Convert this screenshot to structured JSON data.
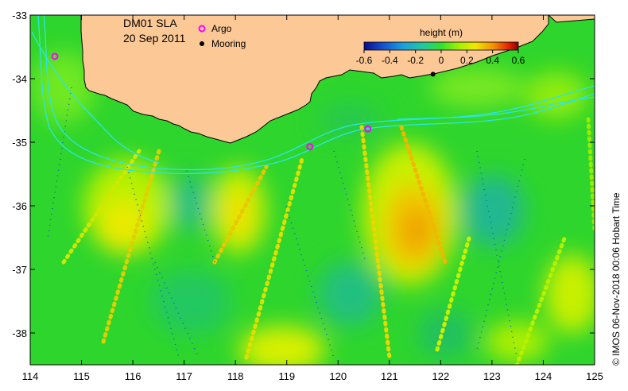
{
  "title": {
    "product": "DM01 SLA",
    "date": "20 Sep 2011"
  },
  "legend": {
    "argo_label": "Argo",
    "mooring_label": "Mooring",
    "argo_color": "#ff00ff",
    "mooring_color": "#000000"
  },
  "colorbar": {
    "title": "height (m)",
    "ticks": [
      "-0.6",
      "-0.4",
      "-0.2",
      "0",
      "0.2",
      "0.4",
      "0.6"
    ],
    "range": [
      -0.6,
      0.6
    ],
    "colors": [
      "#0a0a8c",
      "#1550d0",
      "#1a9ee0",
      "#20c8a0",
      "#30e030",
      "#a8f000",
      "#f0e800",
      "#f09000",
      "#e02000",
      "#8c0000"
    ]
  },
  "axes": {
    "x_ticks": [
      "114",
      "115",
      "116",
      "117",
      "118",
      "119",
      "120",
      "121",
      "122",
      "123",
      "124",
      "125"
    ],
    "y_ticks": [
      "-33",
      "-34",
      "-35",
      "-36",
      "-37",
      "-38"
    ],
    "lon_range": [
      114,
      125
    ],
    "lat_range": [
      -33,
      -38.5
    ]
  },
  "credit": "© IMOS 06-Nov-2018 00:06 Hobart Time",
  "colors": {
    "land": "#fcc896",
    "ocean_base": "#2ed52c",
    "contour": "#29e6e6"
  },
  "argo_floats": [
    {
      "lon": 114.48,
      "lat": -33.65
    },
    {
      "lon": 119.45,
      "lat": -35.07
    },
    {
      "lon": 120.58,
      "lat": -34.79
    }
  ],
  "moorings": [
    {
      "lon": 121.85,
      "lat": -33.93
    }
  ]
}
